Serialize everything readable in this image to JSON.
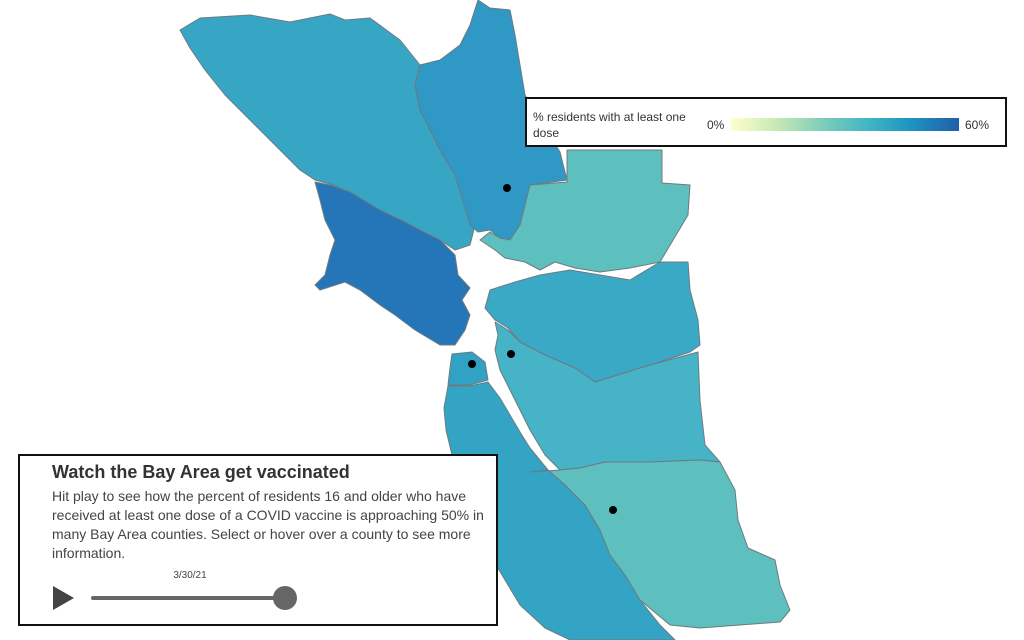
{
  "legend": {
    "title": "% residents with at least one dose",
    "min_label": "0%",
    "max_label": "60%",
    "scale": [
      "#ffffcc",
      "#c7e9b4",
      "#7fcdbb",
      "#41b6c4",
      "#1d91c0",
      "#225ea8"
    ]
  },
  "panel": {
    "title": "Watch the Bay Area get vaccinated",
    "body": "Hit play to see how the percent of residents 16 and older who have received at least one dose of a COVID vaccine is approaching 50% in many Bay Area counties. Select or hover over a county to see more information.",
    "date": "3/30/21",
    "slider_progress": 1.0
  },
  "colors": {
    "sonoma": "#37a6c5",
    "napa": "#2f98c4",
    "solano": "#5ebfbf",
    "marin": "#2476b8",
    "contra_costa": "#3aa9c6",
    "alameda": "#46b3c6",
    "san_francisco": "#31a2c4",
    "san_mateo": "#34a4c4",
    "santa_clara": "#5ebfbf",
    "border": "#6e7a80",
    "marker": "#000000"
  }
}
